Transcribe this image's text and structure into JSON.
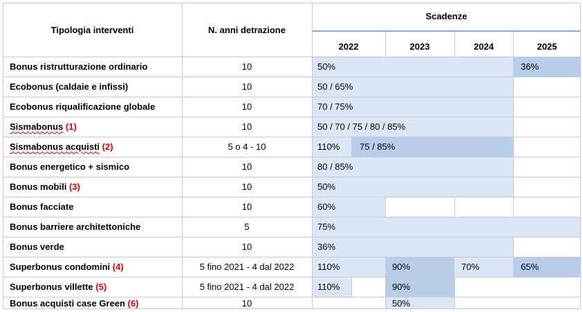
{
  "headers": {
    "type": "Tipologia interventi",
    "years": "N. anni detrazione",
    "deadlines": "Scadenze",
    "y2022": "2022",
    "y2023": "2023",
    "y2024": "2024",
    "y2025": "2025"
  },
  "rows": [
    {
      "name": "Bonus ristrutturazione ordinario",
      "note": "",
      "years": "10",
      "v1": "50%",
      "v2": "",
      "v3": "36%"
    },
    {
      "name": "Ecobonus (caldaie e infissi)",
      "note": "",
      "years": "10",
      "v1": "50 / 65%",
      "v2": "",
      "v3": ""
    },
    {
      "name": "Ecobonus riqualificazione globale",
      "note": "",
      "years": "10",
      "v1": "70 / 75%",
      "v2": "",
      "v3": ""
    },
    {
      "name": "Sismabonus",
      "note": "(1)",
      "years": "10",
      "v1": "50 / 70 / 75 / 80 / 85%",
      "v2": "",
      "v3": ""
    },
    {
      "name": "Sismabonus acquisti",
      "note": "(2)",
      "years": "5 o 4 - 10",
      "v1": "110%",
      "v2": "75 / 85%",
      "v3": ""
    },
    {
      "name": "Bonus energetico + sismico",
      "note": "",
      "years": "10",
      "v1": "80 / 85%",
      "v2": "",
      "v3": ""
    },
    {
      "name": "Bonus mobili",
      "note": "(3)",
      "years": "10",
      "v1": "50%",
      "v2": "",
      "v3": ""
    },
    {
      "name": "Bonus facciate",
      "note": "",
      "years": "10",
      "v1": "60%",
      "v2": "",
      "v3": ""
    },
    {
      "name": "Bonus barriere architettoniche",
      "note": "",
      "years": "5",
      "v1": "75%",
      "v2": "",
      "v3": ""
    },
    {
      "name": "Bonus verde",
      "note": "",
      "years": "10",
      "v1": "36%",
      "v2": "",
      "v3": ""
    },
    {
      "name": "Superbonus condomini",
      "note": "(4)",
      "years": "5 fino 2021 - 4 dal 2022",
      "v1": "110%",
      "v2": "90%",
      "v3": "70%",
      "v4": "65%"
    },
    {
      "name": "Superbonus villette",
      "note": "(5)",
      "years": "5 fino 2021 - 4 dal 2022",
      "v1": "110%",
      "v2": "90%",
      "v3": ""
    },
    {
      "name": "Bonus acquisti case Green",
      "note": "(6)",
      "years": "10",
      "v1": "",
      "v2": "50%",
      "v3": ""
    }
  ]
}
